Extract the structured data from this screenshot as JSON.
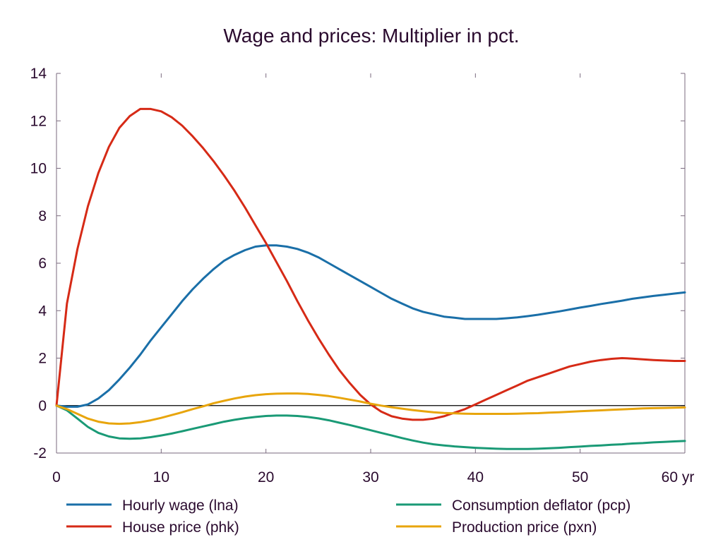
{
  "chart_data": {
    "type": "line",
    "title": "Wage and prices: Multiplier in pct.",
    "xlabel": "",
    "ylabel": "",
    "x_unit": "yr",
    "xlim": [
      0,
      60
    ],
    "ylim": [
      -2,
      14
    ],
    "x_ticks": [
      0,
      10,
      20,
      30,
      40,
      50,
      60
    ],
    "y_ticks": [
      -2,
      0,
      2,
      4,
      6,
      8,
      10,
      12,
      14
    ],
    "x_tick_labels": [
      "0",
      "10",
      "20",
      "30",
      "40",
      "50",
      "60 yr"
    ],
    "y_tick_labels": [
      "-2",
      "0",
      "2",
      "4",
      "6",
      "8",
      "10",
      "12",
      "14"
    ],
    "grid": false,
    "legend_position": "bottom",
    "x": [
      0,
      1,
      2,
      3,
      4,
      5,
      6,
      7,
      8,
      9,
      10,
      11,
      12,
      13,
      14,
      15,
      16,
      17,
      18,
      19,
      20,
      21,
      22,
      23,
      24,
      25,
      26,
      27,
      28,
      29,
      30,
      31,
      32,
      33,
      34,
      35,
      36,
      37,
      38,
      39,
      40,
      41,
      42,
      43,
      44,
      45,
      46,
      47,
      48,
      49,
      50,
      51,
      52,
      53,
      54,
      55,
      56,
      57,
      58,
      59,
      60
    ],
    "series": [
      {
        "name": "Hourly wage (lna)",
        "color": "#1a6fa8",
        "values": [
          0,
          -0.05,
          -0.05,
          0.05,
          0.3,
          0.65,
          1.1,
          1.6,
          2.15,
          2.75,
          3.3,
          3.85,
          4.4,
          4.9,
          5.35,
          5.75,
          6.1,
          6.35,
          6.55,
          6.7,
          6.75,
          6.75,
          6.7,
          6.6,
          6.45,
          6.25,
          6.0,
          5.75,
          5.5,
          5.25,
          5.0,
          4.75,
          4.5,
          4.3,
          4.1,
          3.95,
          3.85,
          3.75,
          3.7,
          3.65,
          3.65,
          3.65,
          3.65,
          3.68,
          3.72,
          3.77,
          3.83,
          3.9,
          3.97,
          4.05,
          4.13,
          4.2,
          4.28,
          4.35,
          4.42,
          4.5,
          4.56,
          4.62,
          4.67,
          4.72,
          4.77
        ]
      },
      {
        "name": "House price (phk)",
        "color": "#d62a16",
        "values": [
          0,
          4.3,
          6.6,
          8.4,
          9.8,
          10.9,
          11.7,
          12.2,
          12.5,
          12.5,
          12.4,
          12.15,
          11.8,
          11.35,
          10.85,
          10.3,
          9.7,
          9.05,
          8.35,
          7.6,
          6.85,
          6.05,
          5.25,
          4.4,
          3.6,
          2.85,
          2.15,
          1.5,
          0.95,
          0.45,
          0.05,
          -0.25,
          -0.45,
          -0.55,
          -0.6,
          -0.6,
          -0.55,
          -0.45,
          -0.3,
          -0.15,
          0.05,
          0.25,
          0.45,
          0.65,
          0.85,
          1.05,
          1.2,
          1.35,
          1.5,
          1.65,
          1.75,
          1.85,
          1.92,
          1.97,
          2.0,
          1.98,
          1.95,
          1.92,
          1.9,
          1.88,
          1.88
        ]
      },
      {
        "name": "Consumption deflator (pcp)",
        "color": "#1a9a76",
        "values": [
          0,
          -0.2,
          -0.55,
          -0.9,
          -1.15,
          -1.3,
          -1.38,
          -1.4,
          -1.38,
          -1.33,
          -1.26,
          -1.18,
          -1.08,
          -0.98,
          -0.88,
          -0.78,
          -0.68,
          -0.6,
          -0.53,
          -0.48,
          -0.44,
          -0.42,
          -0.42,
          -0.44,
          -0.48,
          -0.54,
          -0.62,
          -0.72,
          -0.82,
          -0.93,
          -1.04,
          -1.15,
          -1.26,
          -1.37,
          -1.47,
          -1.56,
          -1.63,
          -1.68,
          -1.72,
          -1.75,
          -1.78,
          -1.8,
          -1.82,
          -1.83,
          -1.83,
          -1.83,
          -1.82,
          -1.8,
          -1.78,
          -1.75,
          -1.73,
          -1.7,
          -1.68,
          -1.65,
          -1.63,
          -1.6,
          -1.58,
          -1.55,
          -1.53,
          -1.51,
          -1.49
        ]
      },
      {
        "name": "Production price (pxn)",
        "color": "#e8a50c",
        "values": [
          0,
          -0.15,
          -0.35,
          -0.55,
          -0.68,
          -0.75,
          -0.77,
          -0.75,
          -0.7,
          -0.62,
          -0.52,
          -0.4,
          -0.28,
          -0.15,
          -0.03,
          0.1,
          0.2,
          0.3,
          0.38,
          0.44,
          0.48,
          0.5,
          0.51,
          0.51,
          0.49,
          0.45,
          0.4,
          0.33,
          0.25,
          0.17,
          0.08,
          0.0,
          -0.07,
          -0.13,
          -0.19,
          -0.24,
          -0.28,
          -0.31,
          -0.33,
          -0.34,
          -0.35,
          -0.35,
          -0.35,
          -0.35,
          -0.34,
          -0.33,
          -0.32,
          -0.3,
          -0.28,
          -0.26,
          -0.24,
          -0.22,
          -0.2,
          -0.18,
          -0.16,
          -0.14,
          -0.12,
          -0.11,
          -0.1,
          -0.09,
          -0.08
        ]
      }
    ]
  }
}
